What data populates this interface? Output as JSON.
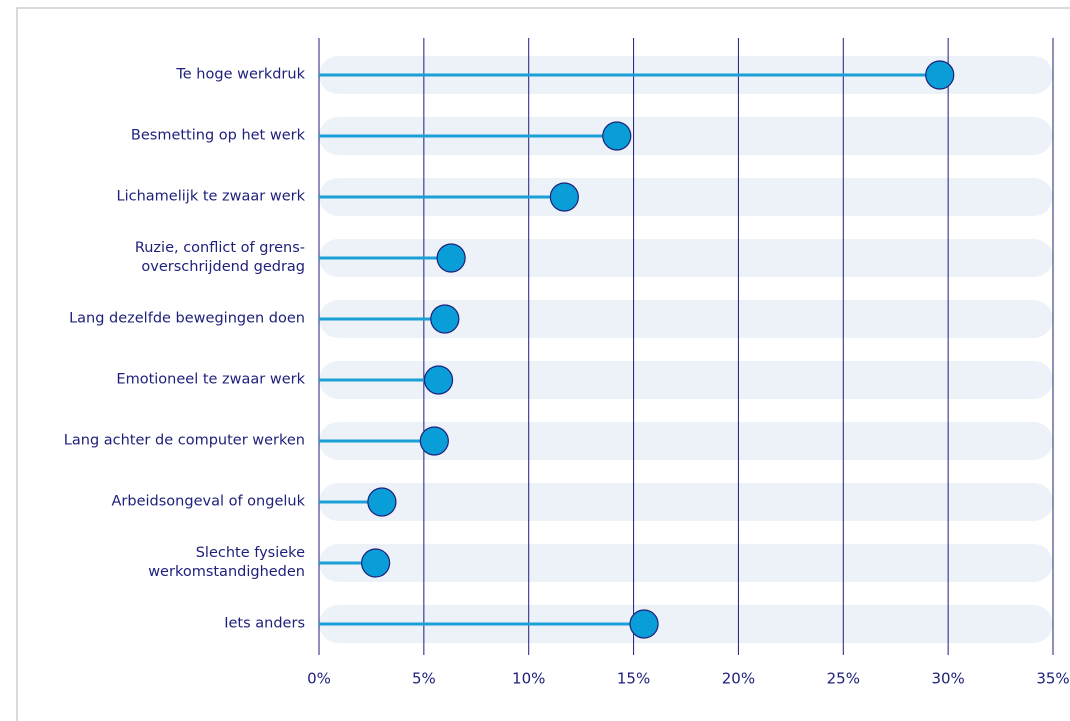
{
  "chart_data": {
    "type": "lollipop",
    "categories": [
      "Te hoge werkdruk",
      "Besmetting op het werk",
      "Lichamelijk te zwaar werk",
      "Ruzie, conflict of grens-\noverschrijdend gedrag",
      "Lang dezelfde bewegingen doen",
      "Emotioneel te zwaar werk",
      "Lang achter de computer werken",
      "Arbeidsongeval of ongeluk",
      "Slechte fysieke\nwerkomstandigheden",
      "Iets anders"
    ],
    "values": [
      29.6,
      14.2,
      11.7,
      6.3,
      6.0,
      5.7,
      5.5,
      3.0,
      2.7,
      15.5
    ],
    "color": "#0a9ed8",
    "xlim": [
      0,
      35
    ],
    "xticks": [
      {
        "value": 0,
        "label": "0%"
      },
      {
        "value": 5,
        "label": "5%"
      },
      {
        "value": 10,
        "label": "10%"
      },
      {
        "value": 15,
        "label": "15%"
      },
      {
        "value": 20,
        "label": "20%"
      },
      {
        "value": 25,
        "label": "25%"
      },
      {
        "value": 30,
        "label": "30%"
      },
      {
        "value": 35,
        "label": "35%"
      }
    ],
    "grid": true
  }
}
